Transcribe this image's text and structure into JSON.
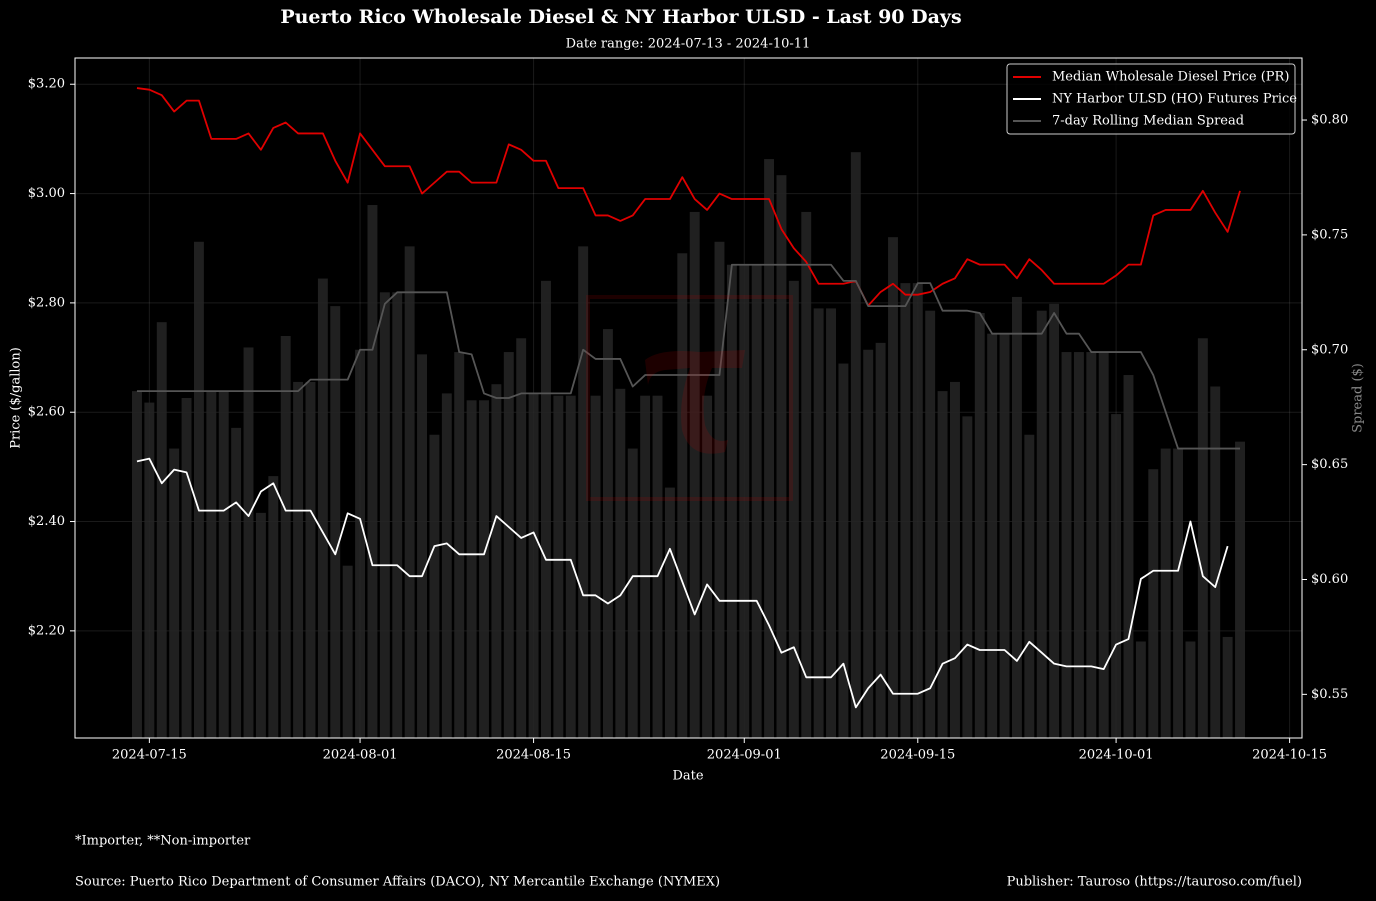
{
  "chart_data": {
    "type": "line",
    "title": "Puerto Rico Wholesale Diesel & NY Harbor ULSD - Last 90 Days",
    "subtitle": "Date range: 2024-07-13 - 2024-10-11",
    "xlabel": "Date",
    "ylabel": "Price ($/gallon)",
    "y2label": "Spread ($)",
    "footnote": "*Importer, **Non-importer",
    "source": "Source: Puerto Rico Department of Consumer Affairs (DACO), NY Mercantile Exchange (NYMEX)",
    "publisher": "Publisher: Tauroso (https://tauroso.com/fuel)",
    "legend": "upper right",
    "grid": true,
    "xlim": [
      "2024-07-09",
      "2024-10-16"
    ],
    "xticks": [
      "2024-07-15",
      "2024-08-01",
      "2024-08-15",
      "2024-09-01",
      "2024-09-15",
      "2024-10-01",
      "2024-10-15"
    ],
    "ylim": [
      2.004,
      3.248
    ],
    "yticks": [
      {
        "value": 2.2,
        "label": "$2.20"
      },
      {
        "value": 2.4,
        "label": "$2.40"
      },
      {
        "value": 2.6,
        "label": "$2.60"
      },
      {
        "value": 2.8,
        "label": "$2.80"
      },
      {
        "value": 3.0,
        "label": "$3.00"
      },
      {
        "value": 3.2,
        "label": "$3.20"
      }
    ],
    "y2lim": [
      0.531,
      0.827
    ],
    "y2ticks": [
      {
        "value": 0.55,
        "label": "$0.55"
      },
      {
        "value": 0.6,
        "label": "$0.60"
      },
      {
        "value": 0.65,
        "label": "$0.65"
      },
      {
        "value": 0.7,
        "label": "$0.70"
      },
      {
        "value": 0.75,
        "label": "$0.75"
      },
      {
        "value": 0.8,
        "label": "$0.80"
      }
    ],
    "x": [
      "2024-07-14",
      "2024-07-15",
      "2024-07-16",
      "2024-07-17",
      "2024-07-18",
      "2024-07-19",
      "2024-07-20",
      "2024-07-21",
      "2024-07-22",
      "2024-07-23",
      "2024-07-24",
      "2024-07-25",
      "2024-07-26",
      "2024-07-27",
      "2024-07-28",
      "2024-07-29",
      "2024-07-30",
      "2024-07-31",
      "2024-08-01",
      "2024-08-02",
      "2024-08-03",
      "2024-08-04",
      "2024-08-05",
      "2024-08-06",
      "2024-08-07",
      "2024-08-08",
      "2024-08-09",
      "2024-08-10",
      "2024-08-11",
      "2024-08-12",
      "2024-08-13",
      "2024-08-14",
      "2024-08-15",
      "2024-08-16",
      "2024-08-17",
      "2024-08-18",
      "2024-08-19",
      "2024-08-20",
      "2024-08-21",
      "2024-08-22",
      "2024-08-23",
      "2024-08-24",
      "2024-08-25",
      "2024-08-26",
      "2024-08-27",
      "2024-08-28",
      "2024-08-29",
      "2024-08-30",
      "2024-08-31",
      "2024-09-01",
      "2024-09-02",
      "2024-09-03",
      "2024-09-04",
      "2024-09-05",
      "2024-09-06",
      "2024-09-07",
      "2024-09-08",
      "2024-09-09",
      "2024-09-10",
      "2024-09-11",
      "2024-09-12",
      "2024-09-13",
      "2024-09-14",
      "2024-09-15",
      "2024-09-16",
      "2024-09-17",
      "2024-09-18",
      "2024-09-19",
      "2024-09-20",
      "2024-09-21",
      "2024-09-22",
      "2024-09-23",
      "2024-09-24",
      "2024-09-25",
      "2024-09-26",
      "2024-09-27",
      "2024-09-28",
      "2024-09-29",
      "2024-09-30",
      "2024-10-01",
      "2024-10-02",
      "2024-10-03",
      "2024-10-04",
      "2024-10-05",
      "2024-10-06",
      "2024-10-07",
      "2024-10-08",
      "2024-10-09",
      "2024-10-10",
      "2024-10-11"
    ],
    "series": [
      {
        "name": "Median Wholesale Diesel Price (PR)",
        "color": "#e00000",
        "values": [
          3.193,
          3.19,
          3.18,
          3.15,
          3.17,
          3.17,
          3.1,
          3.1,
          3.1,
          3.11,
          3.08,
          3.12,
          3.13,
          3.11,
          3.11,
          3.11,
          3.06,
          3.02,
          3.11,
          3.08,
          3.05,
          3.05,
          3.05,
          3.0,
          3.02,
          3.04,
          3.04,
          3.02,
          3.02,
          3.02,
          3.09,
          3.08,
          3.06,
          3.06,
          3.01,
          3.01,
          3.01,
          2.96,
          2.96,
          2.95,
          2.96,
          2.99,
          2.99,
          2.99,
          3.03,
          2.99,
          2.97,
          3.0,
          2.99,
          2.99,
          2.99,
          2.99,
          2.935,
          2.9,
          2.875,
          2.835,
          2.835,
          2.835,
          2.84,
          2.795,
          2.82,
          2.835,
          2.815,
          2.815,
          2.82,
          2.835,
          2.845,
          2.88,
          2.87,
          2.87,
          2.87,
          2.845,
          2.88,
          2.86,
          2.835,
          2.835,
          2.835,
          2.835,
          2.835,
          2.85,
          2.87,
          2.87,
          2.96,
          2.97,
          2.97,
          2.97,
          3.005,
          2.965,
          2.93,
          3.005
        ]
      },
      {
        "name": "NY Harbor ULSD (HO) Futures Price",
        "color": "#ffffff",
        "values": [
          2.51,
          2.515,
          2.47,
          2.495,
          2.49,
          2.42,
          2.42,
          2.42,
          2.435,
          2.41,
          2.455,
          2.47,
          2.42,
          2.42,
          2.42,
          2.38,
          2.34,
          2.415,
          2.405,
          2.32,
          2.32,
          2.32,
          2.3,
          2.3,
          2.355,
          2.36,
          2.34,
          2.34,
          2.34,
          2.41,
          2.39,
          2.37,
          2.38,
          2.33,
          2.33,
          2.33,
          2.265,
          2.265,
          2.25,
          2.265,
          2.3,
          2.3,
          2.3,
          2.35,
          2.29,
          2.23,
          2.285,
          2.255,
          2.255,
          2.255,
          2.255,
          2.21,
          2.16,
          2.17,
          2.115,
          2.115,
          2.115,
          2.14,
          2.06,
          2.095,
          2.12,
          2.085,
          2.085,
          2.085,
          2.095,
          2.14,
          2.15,
          2.175,
          2.165,
          2.165,
          2.165,
          2.145,
          2.18,
          2.16,
          2.14,
          2.135,
          2.135,
          2.135,
          2.13,
          2.175,
          2.185,
          2.295,
          2.31,
          2.31,
          2.31,
          2.4,
          2.3,
          2.28,
          2.355,
          null
        ]
      },
      {
        "name": "7-day Rolling Median Spread",
        "color": "#555555",
        "axis": "y2",
        "values": [
          0.682,
          0.682,
          0.682,
          0.682,
          0.682,
          0.682,
          0.682,
          0.682,
          0.682,
          0.682,
          0.682,
          0.682,
          0.682,
          0.682,
          0.687,
          0.687,
          0.687,
          0.687,
          0.7,
          0.7,
          0.72,
          0.725,
          0.725,
          0.725,
          0.725,
          0.725,
          0.699,
          0.698,
          0.681,
          0.679,
          0.679,
          0.681,
          0.681,
          0.681,
          0.681,
          0.681,
          0.7,
          0.696,
          0.696,
          0.696,
          0.684,
          0.689,
          0.689,
          0.689,
          0.689,
          0.689,
          0.689,
          0.689,
          0.737,
          0.737,
          0.737,
          0.737,
          0.737,
          0.737,
          0.737,
          0.737,
          0.737,
          0.73,
          0.73,
          0.719,
          0.719,
          0.719,
          0.719,
          0.729,
          0.729,
          0.717,
          0.717,
          0.717,
          0.716,
          0.707,
          0.707,
          0.707,
          0.707,
          0.707,
          0.716,
          0.707,
          0.707,
          0.699,
          0.699,
          0.699,
          0.699,
          0.699,
          0.689,
          0.673,
          0.657,
          0.657,
          0.657,
          0.657,
          0.657,
          0.657
        ]
      },
      {
        "type": "bar",
        "color": "#262626",
        "axis": "y2",
        "values": [
          0.682,
          0.677,
          0.712,
          0.657,
          0.679,
          0.747,
          0.682,
          0.682,
          0.666,
          0.701,
          0.629,
          0.645,
          0.706,
          0.686,
          0.686,
          0.731,
          0.719,
          0.606,
          0.7,
          0.763,
          0.725,
          0.725,
          0.745,
          0.698,
          0.663,
          0.681,
          0.699,
          0.678,
          0.678,
          0.685,
          0.699,
          0.705,
          0.681,
          0.73,
          0.68,
          0.68,
          0.745,
          0.68,
          0.709,
          0.683,
          0.657,
          0.68,
          0.68,
          0.64,
          0.742,
          0.76,
          0.68,
          0.747,
          0.737,
          0.737,
          0.737,
          0.783,
          0.776,
          0.73,
          0.76,
          0.718,
          0.718,
          0.694,
          0.786,
          0.7,
          0.703,
          0.749,
          0.729,
          0.729,
          0.717,
          0.682,
          0.686,
          0.671,
          0.716,
          0.707,
          0.707,
          0.723,
          0.663,
          0.717,
          0.72,
          0.699,
          0.699,
          0.699,
          0.699,
          0.672,
          0.689,
          0.573,
          0.648,
          0.657,
          0.657,
          0.573,
          0.705,
          0.684,
          0.575,
          0.66
        ]
      }
    ]
  }
}
